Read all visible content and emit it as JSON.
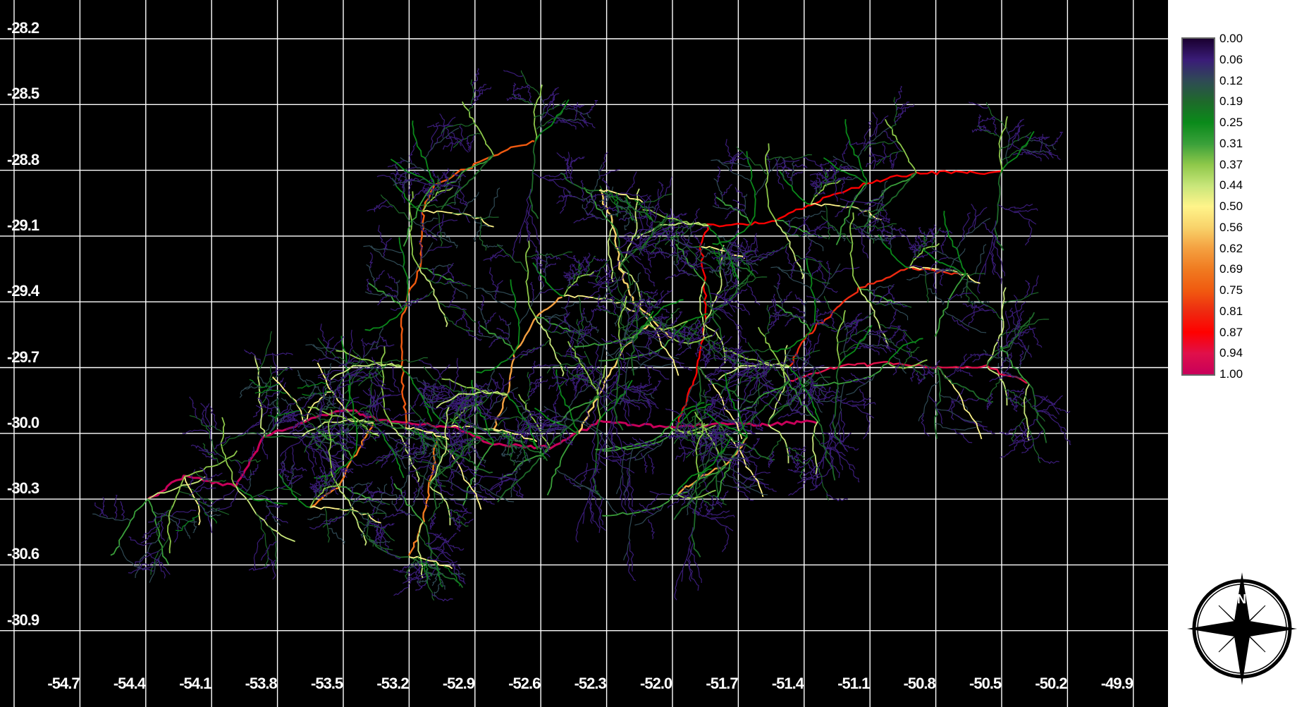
{
  "map": {
    "background_color": "#000000",
    "grid_color": "#ffffff",
    "lat_labels": [
      "-28.2",
      "-28.5",
      "-28.8",
      "-29.1",
      "-29.4",
      "-29.7",
      "-30.0",
      "-30.3",
      "-30.6",
      "-30.9"
    ],
    "lon_labels": [
      "-54.7",
      "-54.4",
      "-54.1",
      "-53.8",
      "-53.5",
      "-53.2",
      "-52.9",
      "-52.6",
      "-52.3",
      "-52.0",
      "-51.7",
      "-51.4",
      "-51.1",
      "-50.8",
      "-50.5",
      "-50.2",
      "-49.9"
    ],
    "features": "river network colored by normalized value (0 to 1)"
  },
  "legend": {
    "ticks": [
      "0.00",
      "0.06",
      "0.12",
      "0.19",
      "0.25",
      "0.31",
      "0.37",
      "0.44",
      "0.50",
      "0.56",
      "0.62",
      "0.69",
      "0.75",
      "0.81",
      "0.87",
      "0.94",
      "1.00"
    ],
    "colors": [
      "#1a0030",
      "#3a1c78",
      "#2f4a55",
      "#1e6a2a",
      "#0a8a1a",
      "#3aa03a",
      "#8ec84a",
      "#c8e67a",
      "#fff48a",
      "#f8d26a",
      "#f4a040",
      "#f07a20",
      "#f05a10",
      "#ee2a10",
      "#ff0000",
      "#e0104a",
      "#c8005a"
    ]
  },
  "compass": {
    "north_label": "N",
    "icon": "compass-rose-icon"
  }
}
